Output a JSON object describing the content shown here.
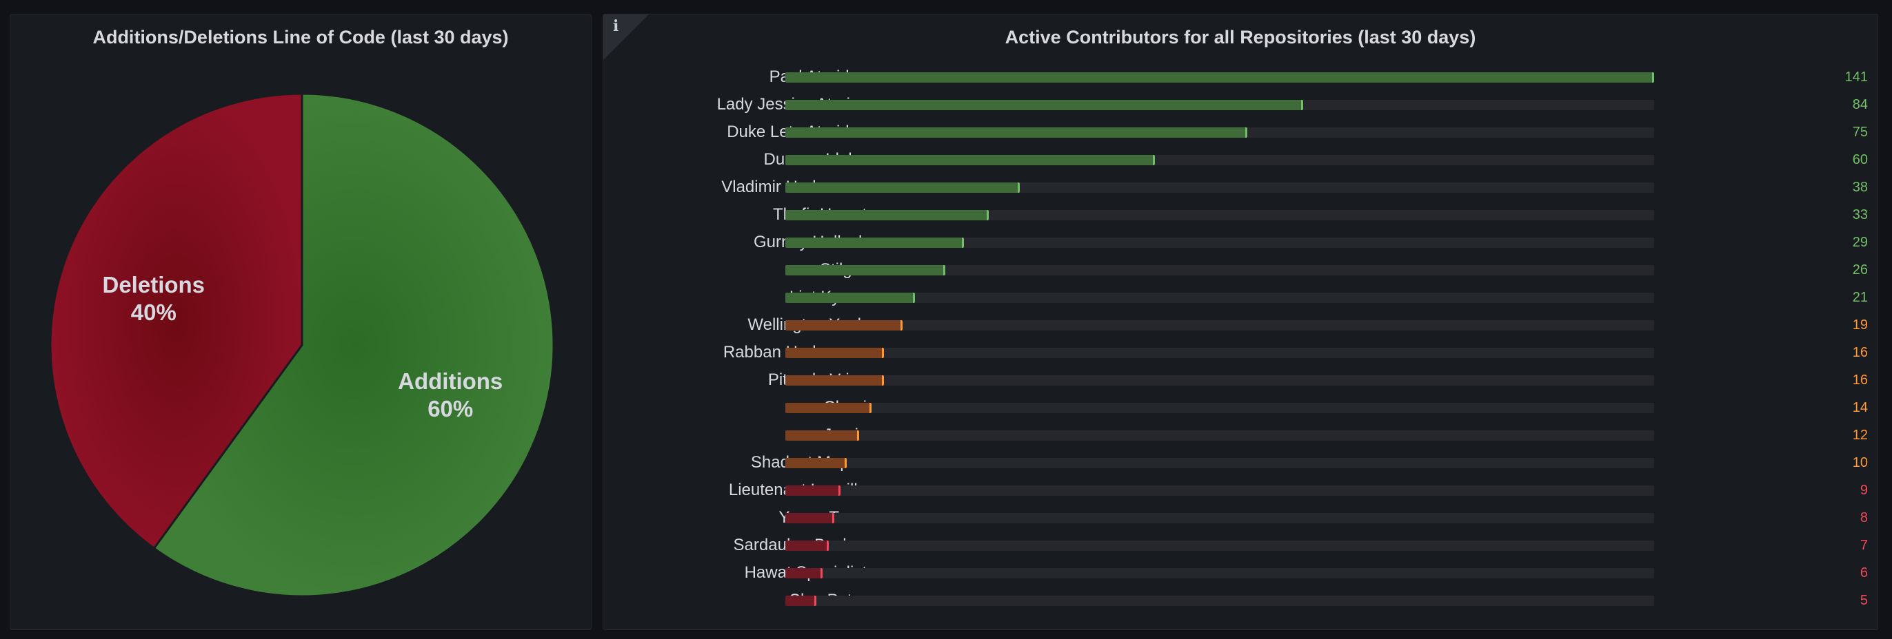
{
  "pie_panel": {
    "title": "Additions/Deletions Line of Code (last 30 days)"
  },
  "bar_panel": {
    "title": "Active Contributors for all Repositories (last 30 days)",
    "info_icon": "info-icon"
  },
  "colors": {
    "additions": "#37872d",
    "deletions": "#c4162a",
    "green": "#73bf69",
    "orange": "#ff9830",
    "red": "#f2495c"
  },
  "chart_data": [
    {
      "type": "pie",
      "title": "Additions/Deletions Line of Code (last 30 days)",
      "slices": [
        {
          "label": "Additions",
          "percent_label": "60%",
          "value": 60,
          "color": "#37872d"
        },
        {
          "label": "Deletions",
          "percent_label": "40%",
          "value": 40,
          "color": "#c4162a"
        }
      ]
    },
    {
      "type": "bar",
      "orientation": "horizontal",
      "title": "Active Contributors for all Repositories (last 30 days)",
      "max": 141,
      "thresholds": {
        "green": 20,
        "orange": 10
      },
      "categories": [
        "Paul Atreides",
        "Lady Jessica Atrei…",
        "Duke Leto Atreides",
        "Duncan Idaho",
        "Vladimir Harkonnen",
        "Thufir Hawat",
        "Gurney Halleck",
        "Stilgar",
        "Liet Kynes",
        "Wellington Yueh",
        "Rabban Harkonnen",
        "Piter de Vries",
        "Chani",
        "Jamis",
        "Shadout Mapes",
        "Lieutenant Lanville",
        "Yunus Tıras",
        "Sardaukar Bashar",
        "Hawat Specialist",
        "Cleo Patra"
      ],
      "values": [
        141,
        84,
        75,
        60,
        38,
        33,
        29,
        26,
        21,
        19,
        16,
        16,
        14,
        12,
        10,
        9,
        8,
        7,
        6,
        5
      ],
      "value_labels": [
        "141",
        "84",
        "75",
        "60",
        "38",
        "33",
        "29",
        "26",
        "21",
        "19",
        "16",
        "16",
        "14",
        "12",
        "10",
        "9",
        "8",
        "7",
        "6",
        "5"
      ]
    }
  ]
}
